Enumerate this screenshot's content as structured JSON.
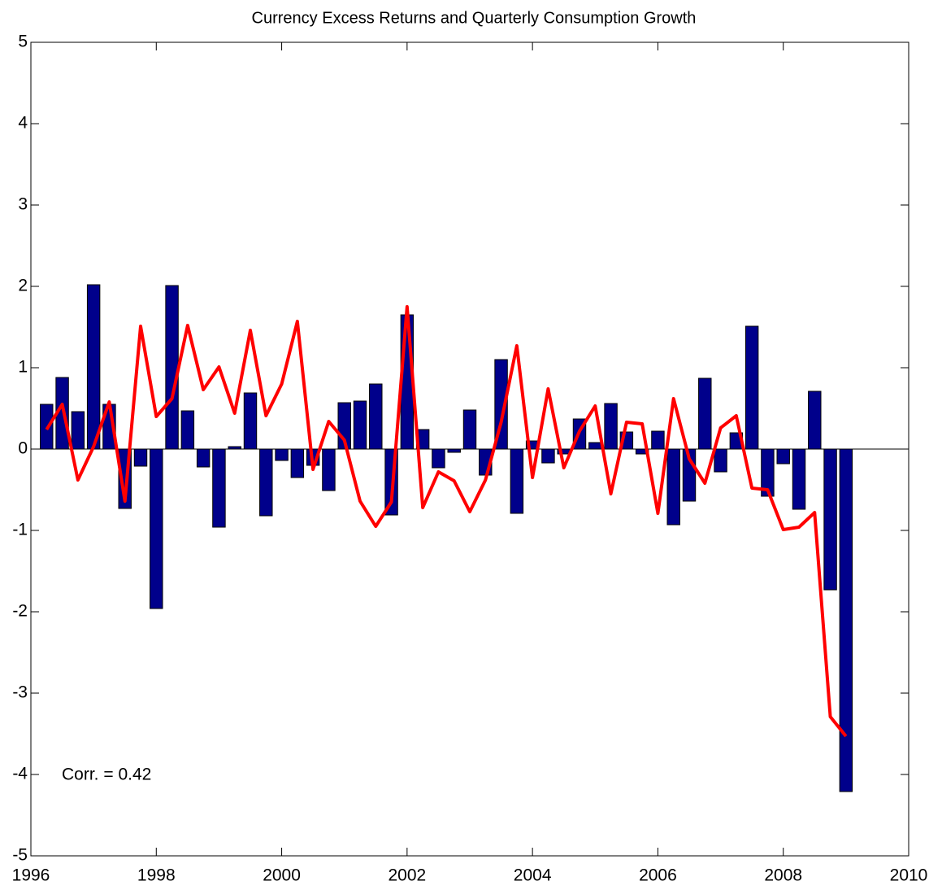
{
  "chart_data": {
    "type": "bar-line",
    "title": "Currency Excess Returns and Quarterly Consumption Growth",
    "annotation": "Corr. = 0.42",
    "x": [
      1996.25,
      1996.5,
      1996.75,
      1997,
      1997.25,
      1997.5,
      1997.75,
      1998,
      1998.25,
      1998.5,
      1998.75,
      1999,
      1999.25,
      1999.5,
      1999.75,
      2000,
      2000.25,
      2000.5,
      2000.75,
      2001,
      2001.25,
      2001.5,
      2001.75,
      2002,
      2002.25,
      2002.5,
      2002.75,
      2003,
      2003.25,
      2003.5,
      2003.75,
      2004,
      2004.25,
      2004.5,
      2004.75,
      2005,
      2005.25,
      2005.5,
      2005.75,
      2006,
      2006.25,
      2006.5,
      2006.75,
      2007,
      2007.25,
      2007.5,
      2007.75,
      2008,
      2008.25,
      2008.5,
      2008.75,
      2009
    ],
    "series": [
      {
        "type": "bar",
        "color": "#00008b",
        "values": [
          0.55,
          0.88,
          0.46,
          2.02,
          0.55,
          -0.73,
          -0.21,
          -1.96,
          2.01,
          0.47,
          -0.22,
          -0.96,
          0.03,
          0.69,
          -0.82,
          -0.14,
          -0.35,
          -0.2,
          -0.51,
          0.57,
          0.59,
          0.8,
          -0.81,
          1.65,
          0.24,
          -0.23,
          -0.04,
          0.48,
          -0.32,
          1.1,
          -0.79,
          0.1,
          -0.17,
          -0.06,
          0.37,
          0.08,
          0.56,
          0.21,
          -0.06,
          0.22,
          -0.93,
          -0.64,
          0.87,
          -0.28,
          0.2,
          1.51,
          -0.58,
          -0.18,
          -0.74,
          0.71,
          -1.73,
          -4.21
        ]
      },
      {
        "type": "line",
        "color": "#ff0000",
        "values": [
          0.24,
          0.55,
          -0.38,
          0.03,
          0.58,
          -0.64,
          1.51,
          0.4,
          0.62,
          1.52,
          0.73,
          1.01,
          0.44,
          1.46,
          0.41,
          0.8,
          1.57,
          -0.25,
          0.34,
          0.11,
          -0.64,
          -0.95,
          -0.65,
          1.75,
          -0.72,
          -0.28,
          -0.39,
          -0.77,
          -0.38,
          0.33,
          1.27,
          -0.35,
          0.74,
          -0.23,
          0.22,
          0.53,
          -0.55,
          0.33,
          0.31,
          -0.79,
          0.62,
          -0.12,
          -0.42,
          0.26,
          0.41,
          -0.48,
          -0.5,
          -0.99,
          -0.96,
          -0.78,
          -3.29,
          -3.53
        ]
      }
    ],
    "xlim": [
      1996,
      2010
    ],
    "xticks": [
      1996,
      1998,
      2000,
      2002,
      2004,
      2006,
      2008,
      2010
    ],
    "ylim": [
      -5,
      5
    ],
    "yticks": [
      -5,
      -4,
      -3,
      -2,
      -1,
      0,
      1,
      2,
      3,
      4,
      5
    ]
  }
}
